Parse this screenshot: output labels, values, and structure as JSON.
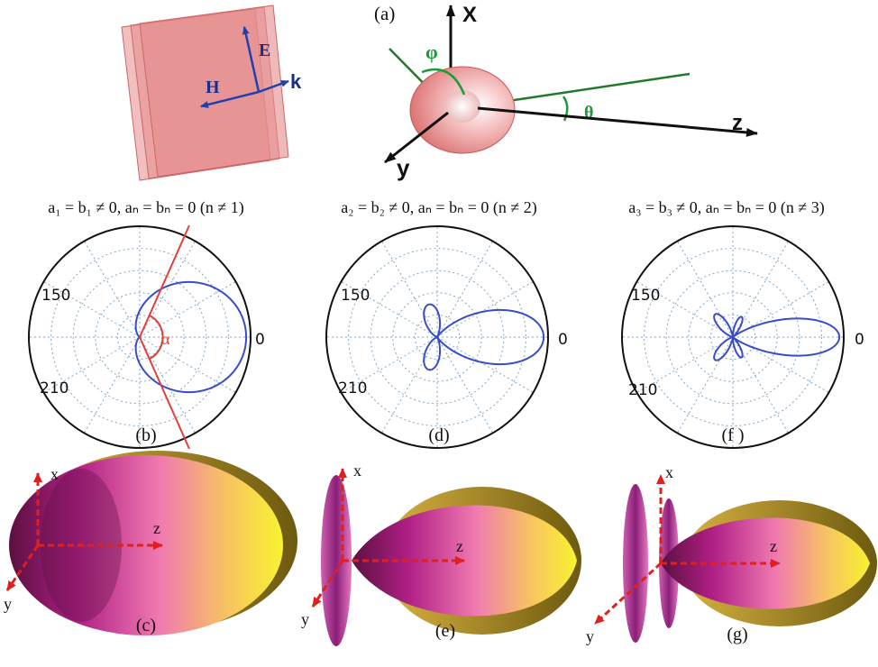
{
  "figure": {
    "panel_a": {
      "label": "(a)",
      "wave": {
        "E": "E",
        "H": "H",
        "k": "k"
      },
      "axes": {
        "x": "X",
        "y": "y",
        "z": "z"
      },
      "angles": {
        "phi": "φ",
        "theta": "θ"
      }
    },
    "panels_polar": [
      {
        "id": "b",
        "label": "(b)",
        "condition": "a₁ = b₁ ≠ 0, aₙ = bₙ = 0 (n ≠ 1)",
        "order": 1,
        "angle_labels": {
          "a150": "150",
          "a210": "210",
          "a0": "0"
        },
        "annotation": "α"
      },
      {
        "id": "d",
        "label": "(d)",
        "condition": "a₂ = b₂ ≠ 0, aₙ = bₙ = 0 (n ≠ 2)",
        "order": 2,
        "angle_labels": {
          "a150": "150",
          "a210": "210",
          "a0": "0"
        }
      },
      {
        "id": "f",
        "label": "(f )",
        "condition": "a₃ = b₃ ≠ 0, aₙ = bₙ = 0 (n ≠ 3)",
        "order": 3,
        "angle_labels": {
          "a150": "150",
          "a210": "210",
          "a0": "0"
        }
      }
    ],
    "panels_3d": [
      {
        "id": "c",
        "label": "(c)",
        "order": 1,
        "axes": {
          "x": "x",
          "y": "y",
          "z": "z"
        }
      },
      {
        "id": "e",
        "label": "(e)",
        "order": 2,
        "axes": {
          "x": "x",
          "y": "y",
          "z": "z"
        }
      },
      {
        "id": "g",
        "label": "(g)",
        "order": 3,
        "axes": {
          "x": "x",
          "y": "y",
          "z": "z"
        }
      }
    ],
    "colors": {
      "pattern_line": "#3b4cc8",
      "alpha_line": "#e0403a",
      "grid": "#7fa6c8",
      "axis_arrow": "#e02020",
      "field_arrow": "#2040b0",
      "green_line": "#1f7a2a",
      "plate": "#e58a8a"
    }
  }
}
